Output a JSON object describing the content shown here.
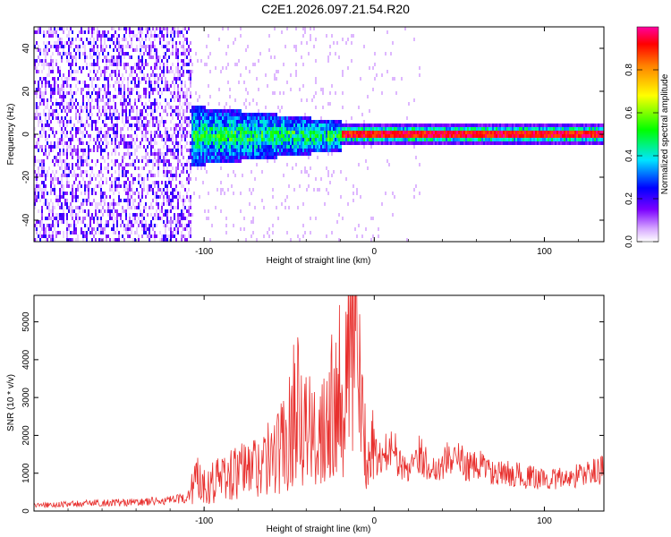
{
  "title": "C2E1.2026.097.21.54.R20",
  "chart_data": [
    {
      "type": "heatmap",
      "xlabel": "Height of straight line (km)",
      "ylabel": "Frequency (Hz)",
      "xlim": [
        -200,
        135
      ],
      "ylim": [
        -50,
        50
      ],
      "xticks": [
        -100,
        0,
        100
      ],
      "yticks": [
        -40,
        -20,
        0,
        20,
        40
      ],
      "colorbar": {
        "label": "Normalized spectral amplitude",
        "range": [
          0,
          1
        ],
        "ticks": [
          "0.0",
          "0.2",
          "0.4",
          "0.6",
          "0.8"
        ]
      },
      "regions": [
        {
          "x_range": [
            -200,
            -108
          ],
          "description_values": {
            "amplitude": 0.12,
            "freq_spread": [
              -50,
              50
            ]
          }
        },
        {
          "x_range": [
            -108,
            -20
          ],
          "description_values": {
            "amplitude": 0.35,
            "freq_spread": [
              -12,
              10
            ]
          }
        },
        {
          "x_range": [
            -20,
            135
          ],
          "description_values": {
            "amplitude": 0.95,
            "freq_spread": [
              -2,
              2
            ]
          }
        }
      ]
    },
    {
      "type": "line",
      "xlabel": "Height of straight line (km)",
      "ylabel": "SNR (10 * v/v)",
      "xlim": [
        -200,
        135
      ],
      "ylim": [
        0,
        5700
      ],
      "xticks": [
        -100,
        0,
        100
      ],
      "yticks": [
        0,
        1000,
        2000,
        3000,
        4000,
        5000
      ],
      "series": [
        {
          "color": "#e8302e",
          "points": [
            [
              -200,
              150
            ],
            [
              -180,
              180
            ],
            [
              -160,
              220
            ],
            [
              -140,
              230
            ],
            [
              -120,
              280
            ],
            [
              -110,
              330
            ],
            [
              -105,
              900
            ],
            [
              -100,
              700
            ],
            [
              -90,
              900
            ],
            [
              -80,
              1000
            ],
            [
              -70,
              1200
            ],
            [
              -60,
              1400
            ],
            [
              -50,
              2000
            ],
            [
              -45,
              3250
            ],
            [
              -40,
              2200
            ],
            [
              -35,
              1800
            ],
            [
              -30,
              2500
            ],
            [
              -25,
              3100
            ],
            [
              -20,
              3400
            ],
            [
              -15,
              3900
            ],
            [
              -12,
              4500
            ],
            [
              -10,
              5700
            ],
            [
              -8,
              2200
            ],
            [
              -5,
              1800
            ],
            [
              0,
              1500
            ],
            [
              5,
              1300
            ],
            [
              10,
              1900
            ],
            [
              15,
              1200
            ],
            [
              20,
              1100
            ],
            [
              25,
              1600
            ],
            [
              30,
              1300
            ],
            [
              35,
              1100
            ],
            [
              40,
              1250
            ],
            [
              45,
              1450
            ],
            [
              50,
              1350
            ],
            [
              55,
              1200
            ],
            [
              60,
              1150
            ],
            [
              65,
              1250
            ],
            [
              70,
              950
            ],
            [
              80,
              1000
            ],
            [
              90,
              900
            ],
            [
              100,
              850
            ],
            [
              110,
              850
            ],
            [
              120,
              950
            ],
            [
              135,
              1100
            ]
          ]
        }
      ]
    }
  ]
}
